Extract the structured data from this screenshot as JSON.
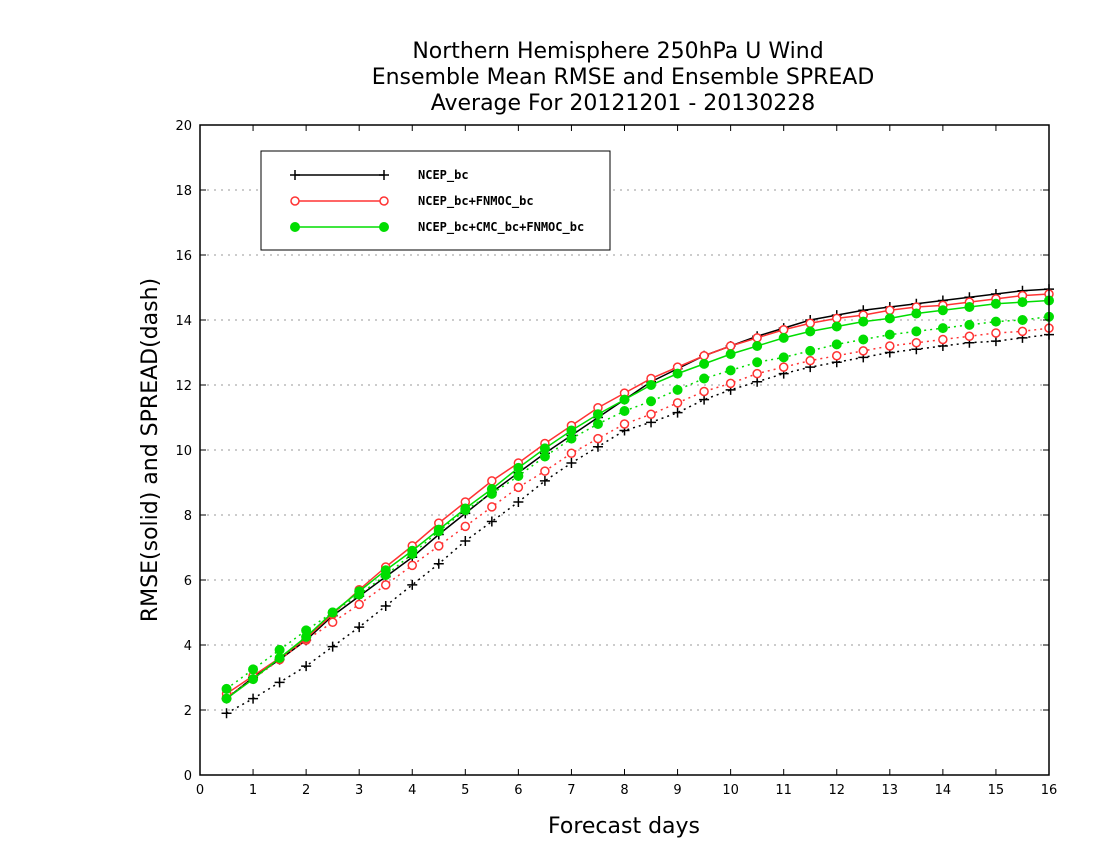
{
  "chart_data": {
    "type": "line",
    "title": [
      "Northern Hemisphere 250hPa U Wind",
      "Ensemble Mean RMSE and Ensemble SPREAD",
      "Average For 20121201 - 20130228"
    ],
    "xlabel": "Forecast days",
    "ylabel": "RMSE(solid) and SPREAD(dash)",
    "xlim": [
      0,
      16
    ],
    "ylim": [
      0,
      20
    ],
    "xticks": [
      "0",
      "1",
      "2",
      "3",
      "4",
      "5",
      "6",
      "7",
      "8",
      "9",
      "10",
      "11",
      "12",
      "13",
      "14",
      "15",
      "16"
    ],
    "yticks": [
      "0",
      "2",
      "4",
      "6",
      "8",
      "10",
      "12",
      "14",
      "16",
      "18",
      "20"
    ],
    "grid": true,
    "legend_position": "top-left",
    "x": [
      0.5,
      1,
      1.5,
      2,
      2.5,
      3,
      3.5,
      4,
      4.5,
      5,
      5.5,
      6,
      6.5,
      7,
      7.5,
      8,
      8.5,
      9,
      9.5,
      10,
      10.5,
      11,
      11.5,
      12,
      12.5,
      13,
      13.5,
      14,
      14.5,
      15,
      15.5,
      16
    ],
    "series": [
      {
        "name": "NCEP_bc",
        "color": "#000000",
        "marker": "plus",
        "rmse": [
          2.35,
          3.0,
          3.55,
          4.15,
          4.9,
          5.5,
          6.1,
          6.7,
          7.4,
          8.05,
          8.7,
          9.3,
          9.9,
          10.45,
          11.0,
          11.55,
          12.1,
          12.5,
          12.9,
          13.2,
          13.5,
          13.75,
          14.0,
          14.15,
          14.3,
          14.4,
          14.5,
          14.6,
          14.7,
          14.8,
          14.9,
          14.95
        ],
        "spread": [
          1.9,
          2.35,
          2.85,
          3.35,
          3.95,
          4.55,
          5.2,
          5.85,
          6.5,
          7.2,
          7.8,
          8.4,
          9.05,
          9.6,
          10.1,
          10.6,
          10.85,
          11.15,
          11.55,
          11.85,
          12.1,
          12.35,
          12.55,
          12.7,
          12.85,
          13.0,
          13.1,
          13.2,
          13.3,
          13.35,
          13.45,
          13.55
        ]
      },
      {
        "name": "NCEP_bc+FNMOC_bc",
        "color": "#ff3333",
        "marker": "open-circle",
        "rmse": [
          2.5,
          3.05,
          3.6,
          4.2,
          4.95,
          5.7,
          6.4,
          7.05,
          7.75,
          8.4,
          9.05,
          9.6,
          10.2,
          10.75,
          11.3,
          11.75,
          12.2,
          12.55,
          12.9,
          13.2,
          13.45,
          13.7,
          13.9,
          14.05,
          14.15,
          14.3,
          14.4,
          14.45,
          14.55,
          14.65,
          14.75,
          14.8
        ],
        "spread": [
          2.4,
          2.95,
          3.55,
          4.15,
          4.7,
          5.25,
          5.85,
          6.45,
          7.05,
          7.65,
          8.25,
          8.85,
          9.35,
          9.9,
          10.35,
          10.8,
          11.1,
          11.45,
          11.8,
          12.05,
          12.35,
          12.55,
          12.75,
          12.9,
          13.05,
          13.2,
          13.3,
          13.4,
          13.5,
          13.6,
          13.65,
          13.75
        ]
      },
      {
        "name": "NCEP_bc+CMC_bc+FNMOC_bc",
        "color": "#00dd00",
        "marker": "filled-circle",
        "rmse": [
          2.35,
          2.95,
          3.6,
          4.25,
          5.0,
          5.65,
          6.3,
          6.9,
          7.55,
          8.2,
          8.8,
          9.45,
          10.05,
          10.6,
          11.1,
          11.55,
          12.0,
          12.35,
          12.65,
          12.95,
          13.2,
          13.45,
          13.65,
          13.8,
          13.95,
          14.05,
          14.2,
          14.3,
          14.4,
          14.5,
          14.55,
          14.6
        ],
        "spread": [
          2.65,
          3.25,
          3.85,
          4.45,
          5.0,
          5.55,
          6.15,
          6.8,
          7.5,
          8.15,
          8.65,
          9.2,
          9.8,
          10.35,
          10.8,
          11.2,
          11.5,
          11.85,
          12.2,
          12.45,
          12.7,
          12.85,
          13.05,
          13.25,
          13.4,
          13.55,
          13.65,
          13.75,
          13.85,
          13.95,
          14.0,
          14.1
        ]
      }
    ]
  }
}
